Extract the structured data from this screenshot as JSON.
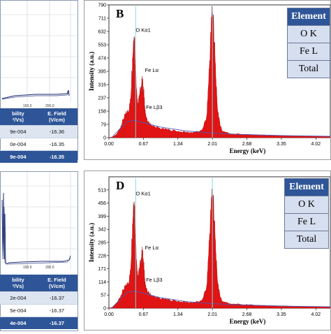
{
  "left_top": {
    "x_ticks": [
      "100.0",
      "200.0"
    ],
    "table": {
      "headers": [
        "bility\n²/Vs)",
        "E. Field\n(V/cm)"
      ],
      "rows": [
        {
          "mobility": "9e-004",
          "field": "-16.36"
        },
        {
          "mobility": "0e-004",
          "field": "-16.35"
        },
        {
          "mobility": "9e-004",
          "field": "-16.35"
        }
      ]
    }
  },
  "left_bottom": {
    "x_ticks": [
      "100.0",
      "200.0"
    ],
    "table": {
      "headers": [
        "bility\n²/Vs)",
        "E. Field\n(V/cm)"
      ],
      "rows": [
        {
          "mobility": "2e-004",
          "field": "-16.37"
        },
        {
          "mobility": "5e-004",
          "field": "-16.37"
        },
        {
          "mobility": "4e-004",
          "field": "-16.37"
        }
      ]
    }
  },
  "chart_data": [
    {
      "type": "area",
      "panel_label": "B",
      "xlabel": "Energy (keV)",
      "ylabel": "Intensity (a.u.)",
      "x_ticks": [
        "0.00",
        "0.67",
        "1.34",
        "2.01",
        "2.68",
        "3.35",
        "4.02"
      ],
      "y_ticks": [
        "0",
        "79",
        "158",
        "237",
        "316",
        "395",
        "474",
        "553",
        "632",
        "711",
        "790"
      ],
      "xlim": [
        0,
        4.3
      ],
      "ylim": [
        0,
        790
      ],
      "x": [
        0.0,
        0.08,
        0.15,
        0.22,
        0.28,
        0.33,
        0.38,
        0.42,
        0.45,
        0.48,
        0.5,
        0.52,
        0.55,
        0.58,
        0.62,
        0.65,
        0.68,
        0.7,
        0.72,
        0.75,
        0.8,
        0.88,
        1.0,
        1.2,
        1.4,
        1.6,
        1.8,
        1.9,
        1.95,
        2.0,
        2.03,
        2.06,
        2.1,
        2.15,
        2.2,
        2.35,
        2.6,
        2.9,
        3.2,
        3.6,
        4.0,
        4.3
      ],
      "y": [
        0,
        5,
        20,
        60,
        110,
        140,
        160,
        220,
        420,
        600,
        560,
        380,
        200,
        220,
        300,
        330,
        260,
        160,
        120,
        95,
        80,
        65,
        55,
        45,
        35,
        30,
        40,
        120,
        420,
        740,
        700,
        480,
        200,
        90,
        40,
        25,
        20,
        15,
        12,
        10,
        8,
        6
      ],
      "peak_labels": [
        {
          "text": "O Kα1",
          "x": 0.52,
          "y": 630
        },
        {
          "text": "Fe Lα",
          "x": 0.7,
          "y": 390
        },
        {
          "text": "Fe Lβ3",
          "x": 0.72,
          "y": 170
        }
      ],
      "element_table": {
        "header": "Element",
        "rows": [
          "O K",
          "Fe L",
          "Total"
        ]
      }
    },
    {
      "type": "area",
      "panel_label": "D",
      "xlabel": "Energy (keV)",
      "ylabel": "Intensity (a.u.)",
      "x_ticks": [
        "0.00",
        "0.67",
        "1.34",
        "2.01",
        "2.68",
        "3.35",
        "4.02"
      ],
      "y_ticks": [
        "0",
        "57",
        "114",
        "171",
        "228",
        "285",
        "342",
        "399",
        "456",
        "513"
      ],
      "xlim": [
        0,
        4.3
      ],
      "ylim": [
        0,
        570
      ],
      "x": [
        0.0,
        0.08,
        0.15,
        0.22,
        0.28,
        0.33,
        0.38,
        0.42,
        0.45,
        0.48,
        0.5,
        0.52,
        0.55,
        0.58,
        0.62,
        0.65,
        0.68,
        0.7,
        0.72,
        0.75,
        0.8,
        0.88,
        1.0,
        1.2,
        1.4,
        1.6,
        1.8,
        1.9,
        1.95,
        2.0,
        2.03,
        2.06,
        2.1,
        2.15,
        2.2,
        2.35,
        2.6,
        2.9,
        3.2,
        3.6,
        4.0,
        4.3
      ],
      "y": [
        0,
        5,
        20,
        50,
        80,
        95,
        110,
        160,
        320,
        470,
        420,
        280,
        140,
        150,
        210,
        240,
        180,
        110,
        85,
        70,
        60,
        50,
        42,
        35,
        28,
        24,
        30,
        90,
        300,
        490,
        470,
        320,
        140,
        60,
        30,
        20,
        16,
        12,
        10,
        8,
        6,
        5
      ],
      "peak_labels": [
        {
          "text": "O Kα1",
          "x": 0.52,
          "y": 490
        },
        {
          "text": "Fe Lα",
          "x": 0.7,
          "y": 255
        },
        {
          "text": "Fe Lβ3",
          "x": 0.72,
          "y": 115
        }
      ],
      "element_table": {
        "header": "Element",
        "rows": [
          "O K",
          "Fe L",
          "Total"
        ]
      }
    }
  ]
}
